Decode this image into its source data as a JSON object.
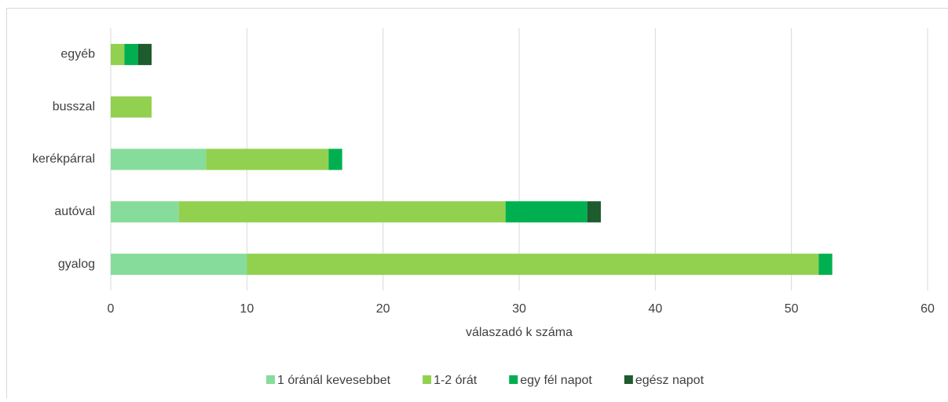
{
  "chart_data": {
    "type": "stacked-barh",
    "x_label": "válaszadó k száma",
    "categories": [
      "gyalog",
      "autóval",
      "kerékpárral",
      "busszal",
      "egyéb"
    ],
    "series": [
      {
        "name": "1 óránál kevesebbet",
        "color": "#86dc9a",
        "values": [
          10,
          5,
          7,
          0,
          0
        ]
      },
      {
        "name": "1-2 órát",
        "color": "#92d050",
        "values": [
          42,
          24,
          9,
          3,
          1
        ]
      },
      {
        "name": "egy fél napot",
        "color": "#00b050",
        "values": [
          1,
          6,
          1,
          0,
          1
        ]
      },
      {
        "name": "egész napot",
        "color": "#1e5b2d",
        "values": [
          0,
          1,
          0,
          0,
          1
        ]
      }
    ],
    "xlim": [
      0,
      60
    ],
    "xticks": [
      0,
      10,
      20,
      30,
      40,
      50,
      60
    ],
    "grid": true,
    "legend": "bottom"
  }
}
